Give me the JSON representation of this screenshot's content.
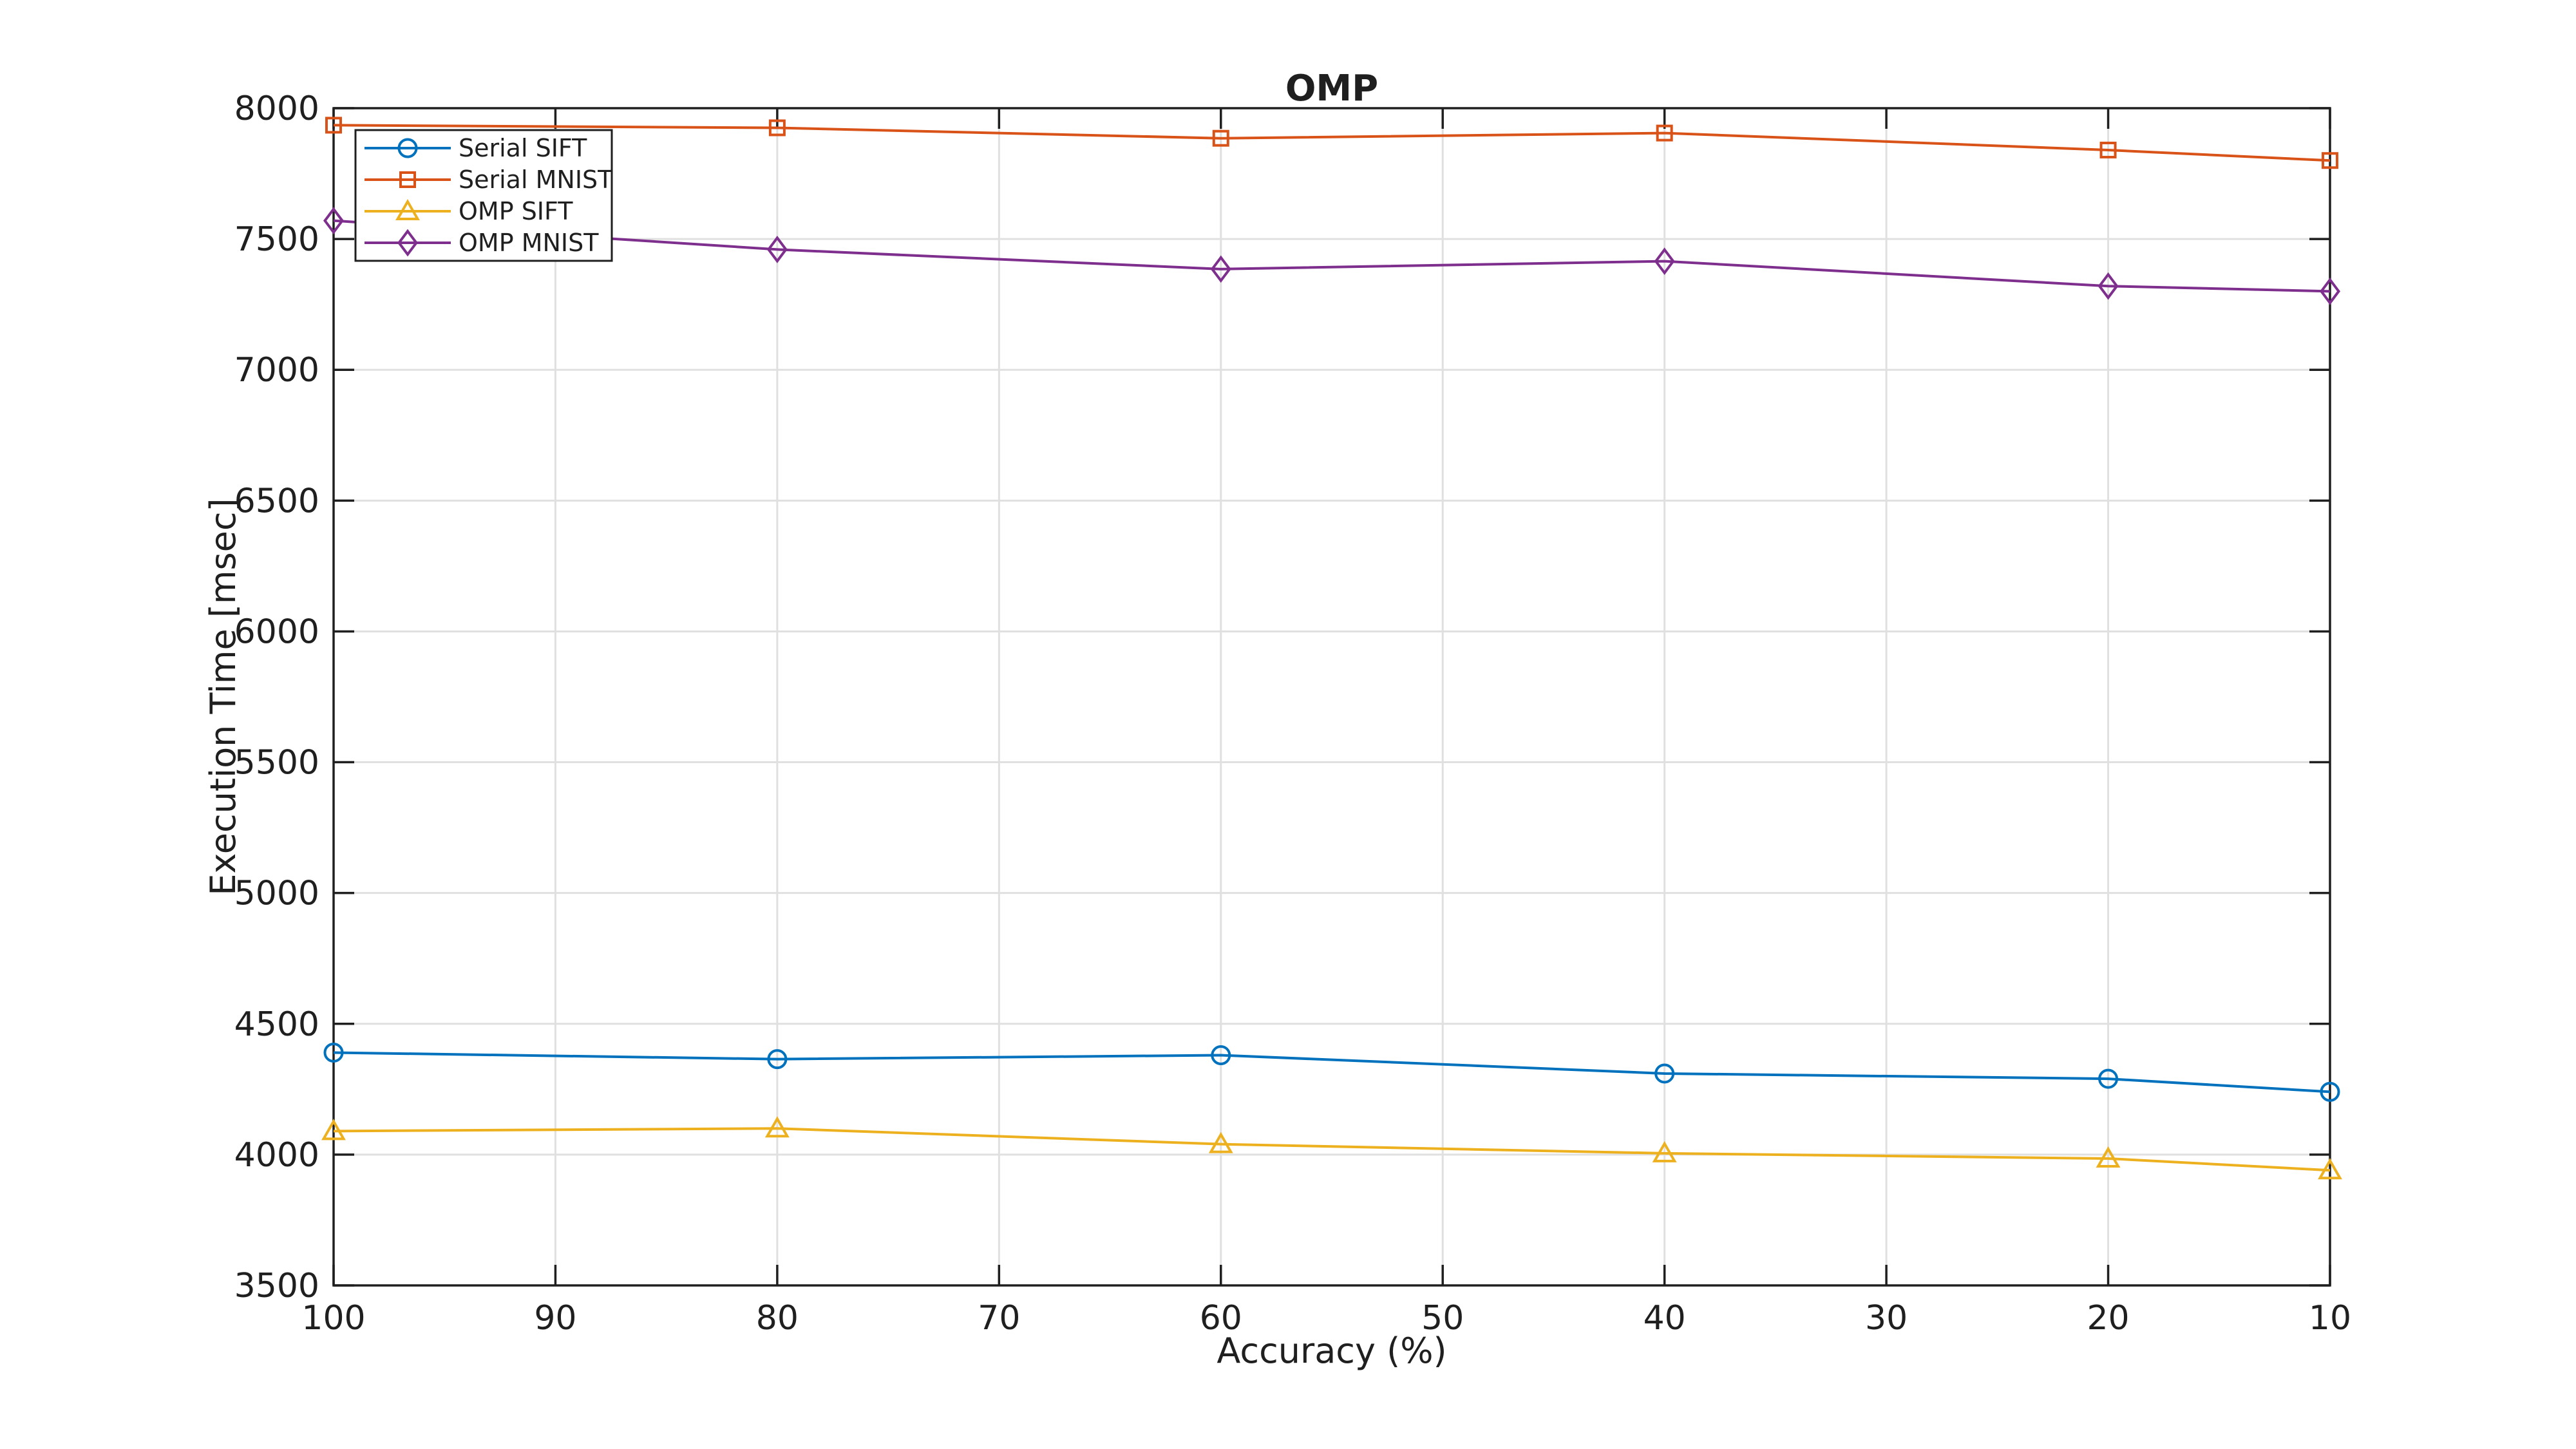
{
  "title": "OMP",
  "chart_data": {
    "type": "line",
    "title": "OMP",
    "xlabel": "Accuracy (%)",
    "ylabel": "Execution Time [msec]",
    "x": [
      100,
      80,
      60,
      40,
      20,
      10
    ],
    "x_ticks": [
      100,
      90,
      80,
      70,
      60,
      50,
      40,
      30,
      20,
      10
    ],
    "x_axis_reversed": true,
    "xlim": [
      100,
      10
    ],
    "ylim": [
      3500,
      8000
    ],
    "y_ticks": [
      3500,
      4000,
      4500,
      5000,
      5500,
      6000,
      6500,
      7000,
      7500,
      8000
    ],
    "grid": true,
    "legend_position": "top-left-inside",
    "series": [
      {
        "name": "Serial SIFT",
        "marker": "circle",
        "color": "#0072BD",
        "values": [
          4390,
          4365,
          4380,
          4310,
          4290,
          4240
        ]
      },
      {
        "name": "Serial MNIST",
        "marker": "square",
        "color": "#D95319",
        "values": [
          7935,
          7925,
          7885,
          7905,
          7840,
          7800
        ]
      },
      {
        "name": "OMP SIFT",
        "marker": "triangle",
        "color": "#EDB120",
        "values": [
          4090,
          4100,
          4040,
          4005,
          3985,
          3940
        ]
      },
      {
        "name": "OMP MNIST",
        "marker": "diamond",
        "color": "#7E2F8E",
        "values": [
          7570,
          7460,
          7385,
          7415,
          7320,
          7300
        ]
      }
    ]
  },
  "style_colors": {
    "axis_frame": "#1f1f1f",
    "grid": "#e0e0e0",
    "text": "#1f1f1f",
    "legend_background": "#ffffff",
    "legend_border": "#1f1f1f"
  }
}
